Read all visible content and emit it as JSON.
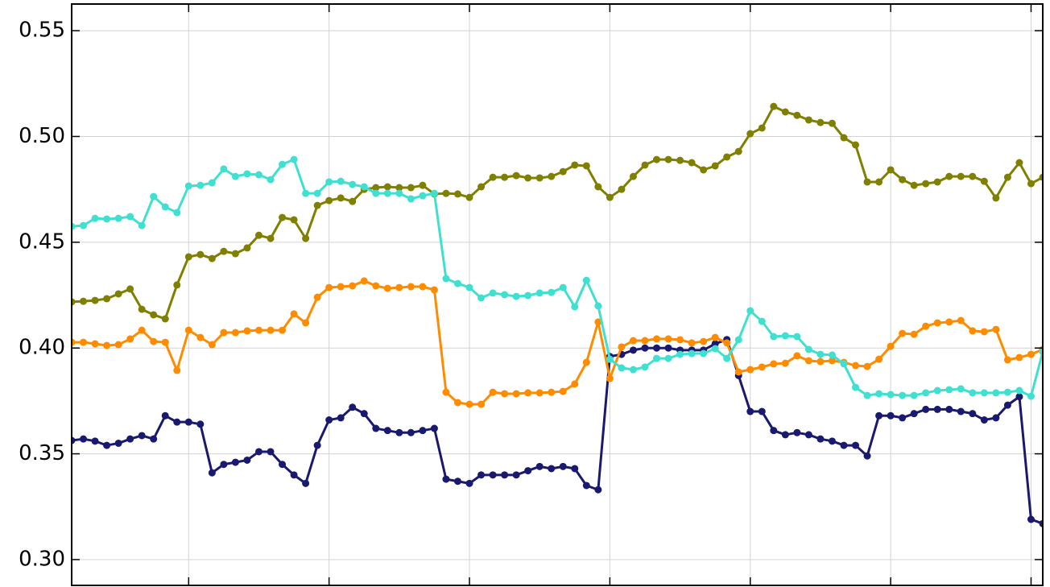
{
  "chart_data": {
    "type": "line",
    "xlim": [
      0,
      83
    ],
    "xticks": [
      10,
      22,
      34,
      46,
      58,
      70,
      82
    ],
    "ylim": [
      0.2878,
      0.5626
    ],
    "yticks": [
      {
        "value": 0.3,
        "label": "0.30"
      },
      0.35,
      {
        "value": 0.4,
        "label": "0.40"
      },
      0.45,
      {
        "value": 0.5,
        "label": "0.50"
      },
      0.55
    ],
    "grid": true,
    "series": [
      {
        "color": "#191970",
        "values": [
          0.3563,
          0.357,
          0.356,
          0.354,
          0.355,
          0.357,
          0.3586,
          0.357,
          0.368,
          0.365,
          0.365,
          0.364,
          0.341,
          0.345,
          0.346,
          0.347,
          0.351,
          0.351,
          0.345,
          0.34,
          0.336,
          0.354,
          0.366,
          0.367,
          0.372,
          0.369,
          0.362,
          0.361,
          0.36,
          0.36,
          0.361,
          0.362,
          0.338,
          0.337,
          0.336,
          0.34,
          0.34,
          0.34,
          0.34,
          0.342,
          0.344,
          0.343,
          0.344,
          0.343,
          0.335,
          0.333,
          0.396,
          0.397,
          0.399,
          0.4,
          0.4,
          0.4,
          0.399,
          0.399,
          0.399,
          0.402,
          0.404,
          0.387,
          0.37,
          0.37,
          0.361,
          0.359,
          0.36,
          0.359,
          0.357,
          0.356,
          0.354,
          0.354,
          0.349,
          0.368,
          0.368,
          0.367,
          0.369,
          0.371,
          0.371,
          0.371,
          0.37,
          0.369,
          0.366,
          0.367,
          0.373,
          0.377,
          0.319,
          0.317
        ]
      },
      {
        "color": "#ff8c00",
        "values": [
          0.4027,
          0.4027,
          0.402,
          0.4012,
          0.4016,
          0.4043,
          0.4084,
          0.4031,
          0.4027,
          0.3894,
          0.4084,
          0.405,
          0.4016,
          0.4073,
          0.4073,
          0.4081,
          0.4084,
          0.4084,
          0.4084,
          0.4161,
          0.4119,
          0.424,
          0.4286,
          0.429,
          0.4294,
          0.4317,
          0.4294,
          0.4282,
          0.4286,
          0.429,
          0.429,
          0.4275,
          0.3791,
          0.3742,
          0.3734,
          0.3734,
          0.3791,
          0.3784,
          0.3784,
          0.3788,
          0.3788,
          0.3791,
          0.3795,
          0.383,
          0.3932,
          0.4123,
          0.3856,
          0.4005,
          0.4035,
          0.4035,
          0.4043,
          0.4043,
          0.4039,
          0.4024,
          0.4031,
          0.405,
          0.4024,
          0.3887,
          0.3898,
          0.391,
          0.3925,
          0.3928,
          0.3963,
          0.394,
          0.3936,
          0.394,
          0.3932,
          0.3917,
          0.3913,
          0.3947,
          0.4008,
          0.4069,
          0.4065,
          0.4103,
          0.4119,
          0.4123,
          0.413,
          0.4081,
          0.4077,
          0.4088,
          0.3944,
          0.3955,
          0.397,
          0.3993
        ]
      },
      {
        "color": "#808000",
        "values": [
          0.4218,
          0.4221,
          0.4225,
          0.4233,
          0.4256,
          0.4279,
          0.4183,
          0.4157,
          0.4138,
          0.4298,
          0.4431,
          0.4442,
          0.4423,
          0.4457,
          0.4446,
          0.4473,
          0.4533,
          0.4518,
          0.4617,
          0.4606,
          0.4518,
          0.4674,
          0.4697,
          0.4709,
          0.4693,
          0.475,
          0.4758,
          0.4762,
          0.4758,
          0.4758,
          0.4769,
          0.4728,
          0.4731,
          0.4728,
          0.4712,
          0.4762,
          0.4807,
          0.4807,
          0.4815,
          0.4804,
          0.4804,
          0.4811,
          0.4834,
          0.4865,
          0.4861,
          0.4762,
          0.4712,
          0.475,
          0.4811,
          0.4865,
          0.4891,
          0.4891,
          0.4887,
          0.4876,
          0.4842,
          0.4861,
          0.4903,
          0.4929,
          0.5013,
          0.504,
          0.5142,
          0.5116,
          0.51,
          0.5078,
          0.5066,
          0.5062,
          0.4994,
          0.496,
          0.4785,
          0.4785,
          0.4842,
          0.4796,
          0.4769,
          0.4777,
          0.4785,
          0.4811,
          0.4811,
          0.4811,
          0.4788,
          0.4709,
          0.4807,
          0.4876,
          0.4777,
          0.4807
        ]
      },
      {
        "color": "#40e0d0",
        "values": [
          0.4575,
          0.4579,
          0.4613,
          0.461,
          0.4613,
          0.4621,
          0.4579,
          0.4716,
          0.4667,
          0.464,
          0.4766,
          0.4769,
          0.4781,
          0.4846,
          0.4811,
          0.4823,
          0.4819,
          0.4796,
          0.4868,
          0.4891,
          0.4731,
          0.4731,
          0.4785,
          0.4788,
          0.4773,
          0.4762,
          0.4731,
          0.4731,
          0.4731,
          0.4705,
          0.472,
          0.4731,
          0.4328,
          0.4305,
          0.4286,
          0.4237,
          0.426,
          0.4252,
          0.4244,
          0.4248,
          0.426,
          0.4263,
          0.4286,
          0.4195,
          0.432,
          0.4199,
          0.3947,
          0.3906,
          0.3898,
          0.391,
          0.3951,
          0.3951,
          0.397,
          0.3974,
          0.3974,
          0.3997,
          0.3951,
          0.4039,
          0.4176,
          0.4126,
          0.4054,
          0.4058,
          0.4054,
          0.3993,
          0.397,
          0.3967,
          0.3925,
          0.3814,
          0.3776,
          0.3784,
          0.378,
          0.3776,
          0.3776,
          0.3788,
          0.3799,
          0.3803,
          0.3807,
          0.3788,
          0.3788,
          0.3788,
          0.3791,
          0.3799,
          0.3772,
          0.3982
        ]
      }
    ]
  }
}
